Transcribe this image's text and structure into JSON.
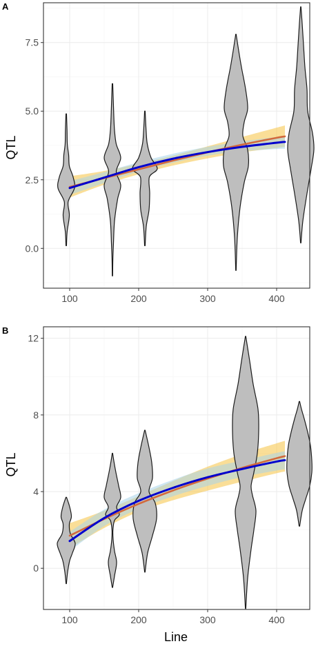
{
  "chart_data": [
    {
      "panel_label": "A",
      "type": "violin",
      "xlabel": "",
      "ylabel": "QTL",
      "xlim": [
        62,
        448
      ],
      "ylim": [
        -1.45,
        8.95
      ],
      "xticks": [
        100,
        200,
        300,
        400
      ],
      "yticks": [
        0.0,
        2.5,
        5.0,
        7.5
      ],
      "ytick_labels": [
        "0.0",
        "2.5",
        "5.0",
        "7.5"
      ],
      "violins": [
        {
          "x": 95,
          "profile": [
            [
              0.1,
              0.4
            ],
            [
              0.6,
              1.3
            ],
            [
              1.2,
              4.5
            ],
            [
              1.7,
              2.8
            ],
            [
              2.2,
              12
            ],
            [
              2.6,
              10
            ],
            [
              3.0,
              4.5
            ],
            [
              3.4,
              3.5
            ],
            [
              3.8,
              1.6
            ],
            [
              4.3,
              1.2
            ],
            [
              4.9,
              0.4
            ]
          ]
        },
        {
          "x": 162,
          "profile": [
            [
              -1.0,
              0.3
            ],
            [
              -0.4,
              0.6
            ],
            [
              0.2,
              1.5
            ],
            [
              1.0,
              3.0
            ],
            [
              1.8,
              7.5
            ],
            [
              2.3,
              12
            ],
            [
              2.8,
              5.5
            ],
            [
              3.3,
              12
            ],
            [
              3.8,
              5.5
            ],
            [
              4.3,
              3.0
            ],
            [
              4.8,
              2.0
            ],
            [
              5.4,
              1.2
            ],
            [
              6.0,
              0.4
            ]
          ]
        },
        {
          "x": 209,
          "profile": [
            [
              0.1,
              0.4
            ],
            [
              0.8,
              2.0
            ],
            [
              1.4,
              6.0
            ],
            [
              2.0,
              7.0
            ],
            [
              2.6,
              6.5
            ],
            [
              2.9,
              18
            ],
            [
              3.3,
              9.0
            ],
            [
              3.8,
              3.5
            ],
            [
              4.3,
              1.8
            ],
            [
              5.0,
              0.4
            ]
          ]
        },
        {
          "x": 341,
          "profile": [
            [
              -0.8,
              0.3
            ],
            [
              0.4,
              2.0
            ],
            [
              1.5,
              6.0
            ],
            [
              2.4,
              12
            ],
            [
              3.0,
              18
            ],
            [
              3.6,
              17
            ],
            [
              4.1,
              10
            ],
            [
              4.6,
              12
            ],
            [
              5.1,
              17
            ],
            [
              5.8,
              14
            ],
            [
              6.6,
              8.0
            ],
            [
              7.2,
              4.0
            ],
            [
              7.8,
              0.3
            ]
          ]
        },
        {
          "x": 435,
          "profile": [
            [
              0.2,
              0.3
            ],
            [
              1.0,
              3.0
            ],
            [
              2.0,
              9.0
            ],
            [
              2.9,
              15
            ],
            [
              3.6,
              19
            ],
            [
              4.2,
              17
            ],
            [
              5.0,
              10
            ],
            [
              5.8,
              9.0
            ],
            [
              6.6,
              6.0
            ],
            [
              7.4,
              4.0
            ],
            [
              8.2,
              2.0
            ],
            [
              8.8,
              0.3
            ]
          ]
        }
      ],
      "fits": [
        {
          "color": "#0000cd",
          "points": [
            [
              100,
              2.2
            ],
            [
              150,
              2.58
            ],
            [
              200,
              2.96
            ],
            [
              250,
              3.27
            ],
            [
              300,
              3.51
            ],
            [
              350,
              3.7
            ],
            [
              400,
              3.85
            ],
            [
              412,
              3.88
            ]
          ],
          "band": null
        },
        {
          "color": "#d2693c",
          "points": [
            [
              100,
              2.24
            ],
            [
              150,
              2.56
            ],
            [
              200,
              2.88
            ],
            [
              250,
              3.2
            ],
            [
              300,
              3.5
            ],
            [
              350,
              3.78
            ],
            [
              400,
              4.03
            ],
            [
              412,
              4.08
            ]
          ],
          "band": {
            "color": "#f5c342",
            "lower": [
              [
                100,
                1.85
              ],
              [
                150,
                2.32
              ],
              [
                200,
                2.7
              ],
              [
                250,
                3.02
              ],
              [
                300,
                3.28
              ],
              [
                350,
                3.5
              ],
              [
                400,
                3.66
              ],
              [
                412,
                3.7
              ]
            ],
            "upper": [
              [
                100,
                2.63
              ],
              [
                150,
                2.82
              ],
              [
                200,
                3.08
              ],
              [
                250,
                3.38
              ],
              [
                300,
                3.72
              ],
              [
                350,
                4.06
              ],
              [
                400,
                4.4
              ],
              [
                412,
                4.48
              ]
            ]
          }
        },
        {
          "color": "#0000cd",
          "points": [],
          "band": {
            "color": "#a8d4ea",
            "lower": [
              [
                100,
                1.95
              ],
              [
                150,
                2.38
              ],
              [
                200,
                2.8
              ],
              [
                250,
                3.12
              ],
              [
                300,
                3.38
              ],
              [
                350,
                3.54
              ],
              [
                400,
                3.62
              ],
              [
                412,
                3.63
              ]
            ],
            "upper": [
              [
                100,
                2.45
              ],
              [
                150,
                2.78
              ],
              [
                200,
                3.14
              ],
              [
                250,
                3.45
              ],
              [
                300,
                3.7
              ],
              [
                350,
                3.9
              ],
              [
                400,
                4.06
              ],
              [
                412,
                4.1
              ]
            ]
          }
        }
      ]
    },
    {
      "panel_label": "B",
      "type": "violin",
      "xlabel": "Line",
      "ylabel": "QTL",
      "xlim": [
        62,
        448
      ],
      "ylim": [
        -2.15,
        12.6
      ],
      "xticks": [
        100,
        200,
        300,
        400
      ],
      "yticks": [
        0,
        4,
        8,
        12
      ],
      "ytick_labels": [
        "0",
        "4",
        "8",
        "12"
      ],
      "violins": [
        {
          "x": 95,
          "profile": [
            [
              -0.8,
              0.3
            ],
            [
              -0.2,
              2.0
            ],
            [
              0.4,
              5.0
            ],
            [
              0.8,
              9.0
            ],
            [
              1.3,
              13
            ],
            [
              1.8,
              6.0
            ],
            [
              2.3,
              4.5
            ],
            [
              2.7,
              7.5
            ],
            [
              3.2,
              5.0
            ],
            [
              3.7,
              0.5
            ]
          ]
        },
        {
          "x": 162,
          "profile": [
            [
              -1.0,
              0.3
            ],
            [
              -0.4,
              3.0
            ],
            [
              0.3,
              6.0
            ],
            [
              0.9,
              3.0
            ],
            [
              1.5,
              1.0
            ],
            [
              2.0,
              0.7
            ],
            [
              2.5,
              3.0
            ],
            [
              2.8,
              10
            ],
            [
              3.2,
              6.0
            ],
            [
              3.7,
              12
            ],
            [
              4.3,
              9.0
            ],
            [
              5.0,
              5.0
            ],
            [
              5.6,
              2.0
            ],
            [
              6.0,
              0.3
            ]
          ]
        },
        {
          "x": 209,
          "profile": [
            [
              -0.2,
              0.3
            ],
            [
              0.8,
              4.0
            ],
            [
              1.7,
              11
            ],
            [
              2.6,
              17
            ],
            [
              3.4,
              15
            ],
            [
              4.0,
              6.0
            ],
            [
              4.7,
              11
            ],
            [
              5.5,
              10
            ],
            [
              6.3,
              6.0
            ],
            [
              7.2,
              0.4
            ]
          ]
        },
        {
          "x": 355,
          "profile": [
            [
              -2.1,
              0.3
            ],
            [
              -0.5,
              3.0
            ],
            [
              1.0,
              8.0
            ],
            [
              2.0,
              12
            ],
            [
              3.0,
              15
            ],
            [
              3.8,
              10
            ],
            [
              4.3,
              8.0
            ],
            [
              5.0,
              12
            ],
            [
              6.0,
              17
            ],
            [
              7.2,
              19
            ],
            [
              8.3,
              18
            ],
            [
              9.6,
              11
            ],
            [
              10.8,
              6.0
            ],
            [
              12.1,
              0.3
            ]
          ]
        },
        {
          "x": 433,
          "profile": [
            [
              2.2,
              0.4
            ],
            [
              3.0,
              4.0
            ],
            [
              3.6,
              9.0
            ],
            [
              4.3,
              15
            ],
            [
              5.0,
              18
            ],
            [
              5.6,
              18
            ],
            [
              6.4,
              16
            ],
            [
              7.1,
              12
            ],
            [
              7.8,
              7.0
            ],
            [
              8.3,
              3.0
            ],
            [
              8.7,
              0.4
            ]
          ]
        }
      ],
      "fits": [
        {
          "color": "#0000cd",
          "points": [
            [
              100,
              1.42
            ],
            [
              150,
              2.62
            ],
            [
              200,
              3.52
            ],
            [
              250,
              4.2
            ],
            [
              300,
              4.75
            ],
            [
              350,
              5.18
            ],
            [
              400,
              5.57
            ],
            [
              412,
              5.64
            ]
          ],
          "band": null
        },
        {
          "color": "#d2693c",
          "points": [
            [
              100,
              1.7
            ],
            [
              150,
              2.57
            ],
            [
              200,
              3.36
            ],
            [
              250,
              4.06
            ],
            [
              300,
              4.68
            ],
            [
              350,
              5.24
            ],
            [
              400,
              5.74
            ],
            [
              412,
              5.85
            ]
          ],
          "band": {
            "color": "#f5c342",
            "lower": [
              [
                100,
                1.05
              ],
              [
                150,
                2.1
              ],
              [
                200,
                2.95
              ],
              [
                250,
                3.55
              ],
              [
                300,
                4.05
              ],
              [
                350,
                4.52
              ],
              [
                400,
                4.96
              ],
              [
                412,
                5.05
              ]
            ],
            "upper": [
              [
                100,
                2.35
              ],
              [
                150,
                3.0
              ],
              [
                200,
                3.77
              ],
              [
                250,
                4.55
              ],
              [
                300,
                5.3
              ],
              [
                350,
                5.96
              ],
              [
                400,
                6.52
              ],
              [
                412,
                6.65
              ]
            ]
          }
        },
        {
          "color": "#0000cd",
          "points": [],
          "band": {
            "color": "#a8d4ea",
            "lower": [
              [
                100,
                0.9
              ],
              [
                150,
                2.2
              ],
              [
                200,
                3.1
              ],
              [
                250,
                3.76
              ],
              [
                300,
                4.3
              ],
              [
                350,
                4.76
              ],
              [
                400,
                5.1
              ],
              [
                412,
                5.16
              ]
            ],
            "upper": [
              [
                100,
                1.9
              ],
              [
                150,
                3.06
              ],
              [
                200,
                3.92
              ],
              [
                250,
                4.62
              ],
              [
                300,
                5.21
              ],
              [
                350,
                5.62
              ],
              [
                400,
                6.02
              ],
              [
                412,
                6.1
              ]
            ]
          }
        }
      ]
    }
  ]
}
